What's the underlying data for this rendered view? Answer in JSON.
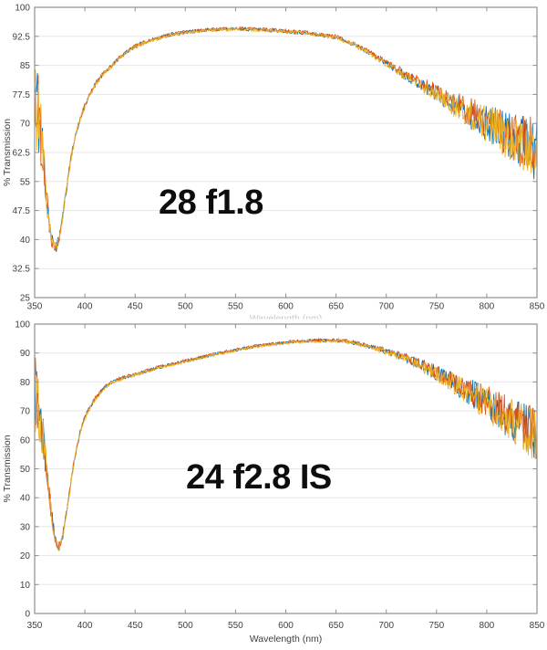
{
  "page": {
    "background": "#ffffff",
    "description": "Two stacked lens transmission spectra plots"
  },
  "chart_data": [
    {
      "type": "line",
      "annotation": "28 f1.8",
      "xlabel": "",
      "xlabel_cropped": "Wavelength (nm)",
      "ylabel": "% Transmission",
      "xlim": [
        350,
        850
      ],
      "ylim": [
        25,
        100
      ],
      "xticks": [
        350,
        400,
        450,
        500,
        550,
        600,
        650,
        700,
        750,
        800,
        850
      ],
      "yticks": [
        25,
        32.5,
        40,
        47.5,
        55,
        62.5,
        70,
        77.5,
        85,
        92.5,
        100
      ],
      "grid": "horizontal-only",
      "legend": "none",
      "axis_color": "#8f8f8f",
      "grid_color": "#e7e7e7",
      "tick_label_color": "#3f3f3f",
      "series": [
        {
          "name": "measurement-1-blue",
          "color": "#0072BD",
          "seed": 11,
          "offset": 0
        },
        {
          "name": "measurement-2-orange",
          "color": "#D95319",
          "seed": 22,
          "offset": 0.3
        },
        {
          "name": "measurement-3-yellow",
          "color": "#EDB120",
          "seed": 33,
          "offset": -0.3
        }
      ],
      "mean_curve": [
        [
          350,
          78
        ],
        [
          352,
          76
        ],
        [
          354,
          72
        ],
        [
          356,
          68
        ],
        [
          358,
          63
        ],
        [
          360,
          57
        ],
        [
          362,
          51
        ],
        [
          364,
          45.5
        ],
        [
          366,
          41.5
        ],
        [
          368,
          39
        ],
        [
          370,
          37.8
        ],
        [
          372,
          38.3
        ],
        [
          374,
          40
        ],
        [
          377,
          44.5
        ],
        [
          380,
          50
        ],
        [
          383,
          55.5
        ],
        [
          386,
          61
        ],
        [
          390,
          66
        ],
        [
          394,
          70
        ],
        [
          399,
          74
        ],
        [
          405,
          77.5
        ],
        [
          412,
          80.8
        ],
        [
          420,
          83.3
        ],
        [
          427,
          85
        ],
        [
          435,
          87
        ],
        [
          443,
          88.8
        ],
        [
          450,
          89.9
        ],
        [
          460,
          91
        ],
        [
          470,
          91.9
        ],
        [
          480,
          92.6
        ],
        [
          490,
          93.1
        ],
        [
          500,
          93.5
        ],
        [
          515,
          94
        ],
        [
          530,
          94.3
        ],
        [
          550,
          94.4
        ],
        [
          570,
          94.3
        ],
        [
          590,
          94
        ],
        [
          610,
          93.6
        ],
        [
          630,
          93
        ],
        [
          650,
          92.3
        ],
        [
          665,
          90.8
        ],
        [
          680,
          88.8
        ],
        [
          695,
          86.3
        ],
        [
          710,
          83.9
        ],
        [
          725,
          81.6
        ],
        [
          740,
          79.3
        ],
        [
          755,
          77
        ],
        [
          770,
          74.6
        ],
        [
          785,
          72.3
        ],
        [
          800,
          70
        ],
        [
          815,
          67.8
        ],
        [
          830,
          65.6
        ],
        [
          840,
          64.3
        ],
        [
          850,
          63
        ]
      ],
      "noise_amplitude": [
        [
          350,
          15
        ],
        [
          354,
          11
        ],
        [
          358,
          7
        ],
        [
          362,
          4
        ],
        [
          366,
          2.5
        ],
        [
          370,
          1.6
        ],
        [
          378,
          1
        ],
        [
          390,
          0.7
        ],
        [
          420,
          0.5
        ],
        [
          560,
          0.45
        ],
        [
          640,
          0.5
        ],
        [
          680,
          0.6
        ],
        [
          700,
          0.8
        ],
        [
          720,
          1.2
        ],
        [
          740,
          1.8
        ],
        [
          760,
          2.6
        ],
        [
          780,
          3.6
        ],
        [
          800,
          4.8
        ],
        [
          820,
          6
        ],
        [
          835,
          7
        ],
        [
          850,
          8
        ]
      ]
    },
    {
      "type": "line",
      "annotation": "24 f2.8 IS",
      "xlabel": "Wavelength (nm)",
      "ylabel": "% Transmission",
      "xlim": [
        350,
        850
      ],
      "ylim": [
        0,
        100
      ],
      "xticks": [
        350,
        400,
        450,
        500,
        550,
        600,
        650,
        700,
        750,
        800,
        850
      ],
      "yticks": [
        0,
        10,
        20,
        30,
        40,
        50,
        60,
        70,
        80,
        90,
        100
      ],
      "grid": "horizontal-only",
      "legend": "none",
      "axis_color": "#8f8f8f",
      "grid_color": "#e7e7e7",
      "tick_label_color": "#3f3f3f",
      "series": [
        {
          "name": "measurement-1-blue",
          "color": "#0072BD",
          "seed": 44,
          "offset": 0
        },
        {
          "name": "measurement-2-orange",
          "color": "#D95319",
          "seed": 55,
          "offset": 0.3
        },
        {
          "name": "measurement-3-yellow",
          "color": "#EDB120",
          "seed": 66,
          "offset": -0.3
        }
      ],
      "mean_curve": [
        [
          350,
          78
        ],
        [
          352,
          76
        ],
        [
          354,
          72
        ],
        [
          356,
          67
        ],
        [
          358,
          62
        ],
        [
          360,
          56
        ],
        [
          362,
          50
        ],
        [
          364,
          43
        ],
        [
          366,
          36.5
        ],
        [
          368,
          31
        ],
        [
          370,
          26.5
        ],
        [
          372,
          24
        ],
        [
          374,
          23
        ],
        [
          376,
          24
        ],
        [
          378,
          27
        ],
        [
          381,
          33
        ],
        [
          384,
          40
        ],
        [
          387,
          47.5
        ],
        [
          390,
          54
        ],
        [
          393,
          59
        ],
        [
          396,
          63.5
        ],
        [
          399,
          66.8
        ],
        [
          402,
          69.3
        ],
        [
          406,
          71.8
        ],
        [
          410,
          74
        ],
        [
          415,
          76.3
        ],
        [
          420,
          78.3
        ],
        [
          425,
          79.5
        ],
        [
          430,
          80.4
        ],
        [
          440,
          81.6
        ],
        [
          450,
          82.5
        ],
        [
          460,
          83.6
        ],
        [
          470,
          84.7
        ],
        [
          480,
          85.6
        ],
        [
          490,
          86.4
        ],
        [
          500,
          87.2
        ],
        [
          510,
          88
        ],
        [
          520,
          88.8
        ],
        [
          530,
          89.6
        ],
        [
          540,
          90.3
        ],
        [
          550,
          91
        ],
        [
          560,
          91.7
        ],
        [
          570,
          92.3
        ],
        [
          580,
          92.8
        ],
        [
          590,
          93.2
        ],
        [
          600,
          93.6
        ],
        [
          610,
          93.9
        ],
        [
          620,
          94.1
        ],
        [
          630,
          94.3
        ],
        [
          640,
          94.4
        ],
        [
          650,
          94.3
        ],
        [
          660,
          94
        ],
        [
          670,
          93.4
        ],
        [
          680,
          92.6
        ],
        [
          690,
          91.7
        ],
        [
          700,
          90.6
        ],
        [
          710,
          89.4
        ],
        [
          720,
          88.1
        ],
        [
          730,
          86.6
        ],
        [
          740,
          84.9
        ],
        [
          750,
          83.1
        ],
        [
          760,
          81.2
        ],
        [
          770,
          79.2
        ],
        [
          780,
          77.1
        ],
        [
          790,
          75
        ],
        [
          800,
          72.8
        ],
        [
          810,
          70.6
        ],
        [
          820,
          68.4
        ],
        [
          830,
          66.2
        ],
        [
          840,
          64
        ],
        [
          850,
          61.8
        ]
      ],
      "noise_amplitude": [
        [
          350,
          15
        ],
        [
          354,
          11
        ],
        [
          358,
          7
        ],
        [
          362,
          4.5
        ],
        [
          366,
          3
        ],
        [
          370,
          1.8
        ],
        [
          378,
          1.2
        ],
        [
          390,
          0.8
        ],
        [
          420,
          0.6
        ],
        [
          560,
          0.5
        ],
        [
          640,
          0.55
        ],
        [
          680,
          0.7
        ],
        [
          700,
          1
        ],
        [
          720,
          1.5
        ],
        [
          740,
          2.2
        ],
        [
          760,
          3.2
        ],
        [
          780,
          4.4
        ],
        [
          800,
          5.8
        ],
        [
          820,
          7.2
        ],
        [
          835,
          8.3
        ],
        [
          850,
          9.5
        ]
      ]
    }
  ]
}
